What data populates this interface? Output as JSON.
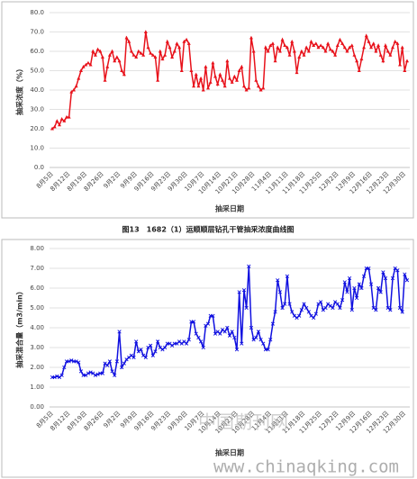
{
  "chart_data": [
    {
      "type": "line",
      "ylabel": "抽采浓度（%）",
      "xlabel": "抽采日期",
      "grid": true,
      "marker": "triangle",
      "ylim": [
        0,
        80
      ],
      "yticks": [
        {
          "value": 0,
          "label": "0.0"
        },
        {
          "value": 10,
          "label": "10.0"
        },
        {
          "value": 20,
          "label": "20.0"
        },
        {
          "value": 30,
          "label": "30.0"
        },
        {
          "value": 40,
          "label": "40.0"
        },
        {
          "value": 50,
          "label": "50.0"
        },
        {
          "value": 60,
          "label": "60.0"
        },
        {
          "value": 70,
          "label": "70.0"
        },
        {
          "value": 80,
          "label": "80.0"
        }
      ],
      "categories": [
        "8月5日",
        null,
        null,
        null,
        null,
        null,
        null,
        "8月12日",
        null,
        null,
        null,
        null,
        null,
        null,
        "8月19日",
        null,
        null,
        null,
        null,
        null,
        null,
        "8月26日",
        null,
        null,
        null,
        null,
        null,
        null,
        "9月2日",
        null,
        null,
        null,
        null,
        null,
        null,
        "9月9日",
        null,
        null,
        null,
        null,
        null,
        null,
        "9月16日",
        null,
        null,
        null,
        null,
        null,
        null,
        "9月23日",
        null,
        null,
        null,
        null,
        null,
        null,
        "9月30日",
        null,
        null,
        null,
        null,
        null,
        null,
        "10月7日",
        null,
        null,
        null,
        null,
        null,
        null,
        "10月14日",
        null,
        null,
        null,
        null,
        null,
        null,
        "10月21日",
        null,
        null,
        null,
        null,
        null,
        null,
        "10月28日",
        null,
        null,
        null,
        null,
        null,
        null,
        "11月4日",
        null,
        null,
        null,
        null,
        null,
        null,
        "11月11日",
        null,
        null,
        null,
        null,
        null,
        null,
        "11月18日",
        null,
        null,
        null,
        null,
        null,
        null,
        "11月25日",
        null,
        null,
        null,
        null,
        null,
        null,
        "12月2日",
        null,
        null,
        null,
        null,
        null,
        null,
        "12月9日",
        null,
        null,
        null,
        null,
        null,
        null,
        "12月16日",
        null,
        null,
        null,
        null,
        null,
        null,
        "12月23日",
        null,
        null,
        null,
        null,
        null,
        null,
        "12月30日",
        null
      ],
      "series": [
        {
          "color": "#e8121b",
          "values": [
            20,
            21,
            24,
            22,
            25,
            24,
            26,
            26,
            39,
            40,
            42,
            46,
            50,
            52,
            53,
            54,
            53,
            60,
            58,
            61,
            60,
            57,
            45,
            52,
            58,
            60,
            55,
            57,
            55,
            50,
            48,
            67,
            65,
            60,
            58,
            57,
            60,
            59,
            58,
            70,
            62,
            59,
            58,
            57,
            45,
            60,
            56,
            58,
            65,
            62,
            57,
            60,
            64,
            62,
            50,
            65,
            66,
            64,
            50,
            42,
            48,
            42,
            46,
            40,
            52,
            41,
            44,
            54,
            47,
            43,
            48,
            45,
            42,
            55,
            46,
            44,
            47,
            45,
            50,
            52,
            42,
            40,
            41,
            67,
            60,
            45,
            42,
            40,
            41,
            62,
            60,
            63,
            64,
            55,
            62,
            60,
            66,
            63,
            62,
            58,
            65,
            60,
            49,
            57,
            60,
            58,
            62,
            60,
            65,
            63,
            64,
            62,
            63,
            62,
            60,
            64,
            61,
            60,
            58,
            63,
            66,
            64,
            62,
            60,
            62,
            63,
            58,
            55,
            50,
            56,
            62,
            68,
            65,
            62,
            64,
            60,
            63,
            58,
            55,
            63,
            60,
            58,
            62,
            65,
            64,
            53,
            62,
            50,
            55
          ]
        }
      ]
    },
    {
      "type": "line",
      "ylabel": "抽采混合量（m3/min）",
      "xlabel": "抽采日期",
      "grid": true,
      "marker": "cross",
      "ylim": [
        0,
        8
      ],
      "yticks": [
        {
          "value": 0,
          "label": "0.00"
        },
        {
          "value": 1,
          "label": "1.00"
        },
        {
          "value": 2,
          "label": "2.00"
        },
        {
          "value": 3,
          "label": "3.00"
        },
        {
          "value": 4,
          "label": "4.00"
        },
        {
          "value": 5,
          "label": "5.00"
        },
        {
          "value": 6,
          "label": "6.00"
        },
        {
          "value": 7,
          "label": "7.00"
        },
        {
          "value": 8,
          "label": "8.00"
        }
      ],
      "categories": [
        "8月5日",
        null,
        null,
        null,
        null,
        null,
        null,
        "8月12日",
        null,
        null,
        null,
        null,
        null,
        null,
        "8月19日",
        null,
        null,
        null,
        null,
        null,
        null,
        "8月26日",
        null,
        null,
        null,
        null,
        null,
        null,
        "9月2日",
        null,
        null,
        null,
        null,
        null,
        null,
        "9月9日",
        null,
        null,
        null,
        null,
        null,
        null,
        "9月16日",
        null,
        null,
        null,
        null,
        null,
        null,
        "9月23日",
        null,
        null,
        null,
        null,
        null,
        null,
        "9月30日",
        null,
        null,
        null,
        null,
        null,
        null,
        "10月7日",
        null,
        null,
        null,
        null,
        null,
        null,
        "10月14日",
        null,
        null,
        null,
        null,
        null,
        null,
        "10月21日",
        null,
        null,
        null,
        null,
        null,
        null,
        "10月28日",
        null,
        null,
        null,
        null,
        null,
        null,
        "11月4日",
        null,
        null,
        null,
        null,
        null,
        null,
        "11月11日",
        null,
        null,
        null,
        null,
        null,
        null,
        "11月18日",
        null,
        null,
        null,
        null,
        null,
        null,
        "11月25日",
        null,
        null,
        null,
        null,
        null,
        null,
        "12月2日",
        null,
        null,
        null,
        null,
        null,
        null,
        "12月9日",
        null,
        null,
        null,
        null,
        null,
        null,
        "12月16日",
        null,
        null,
        null,
        null,
        null,
        null,
        "12月23日",
        null,
        null,
        null,
        null,
        null,
        null,
        "12月30日",
        null
      ],
      "series": [
        {
          "color": "#1010e0",
          "values": [
            1.5,
            1.5,
            1.55,
            1.5,
            1.6,
            2.0,
            2.3,
            2.3,
            2.35,
            2.3,
            2.3,
            2.25,
            1.8,
            1.6,
            1.6,
            1.7,
            1.75,
            1.7,
            1.6,
            1.65,
            1.7,
            1.7,
            2.2,
            2.1,
            2.3,
            1.8,
            1.6,
            2.3,
            3.8,
            2.0,
            2.2,
            2.4,
            2.5,
            2.6,
            2.5,
            3.3,
            2.8,
            2.9,
            2.6,
            2.5,
            3.0,
            3.1,
            2.6,
            2.8,
            3.3,
            3.0,
            2.9,
            3.0,
            3.2,
            3.2,
            3.1,
            3.2,
            3.2,
            3.3,
            3.2,
            3.3,
            3.2,
            3.4,
            4.3,
            4.3,
            3.7,
            3.5,
            3.3,
            3.0,
            4.1,
            4.2,
            4.6,
            4.6,
            3.7,
            3.8,
            3.7,
            3.9,
            3.8,
            4.0,
            3.6,
            3.8,
            3.5,
            2.9,
            5.8,
            3.2,
            5.9,
            5.0,
            7.1,
            4.0,
            3.4,
            3.5,
            3.8,
            3.4,
            3.2,
            2.9,
            2.9,
            3.4,
            4.2,
            4.8,
            6.4,
            5.8,
            5.0,
            5.2,
            6.6,
            5.2,
            4.8,
            4.6,
            4.5,
            4.6,
            4.9,
            5.2,
            5.0,
            4.8,
            4.6,
            4.5,
            4.7,
            5.2,
            5.3,
            4.9,
            5.0,
            5.2,
            5.1,
            5.0,
            5.3,
            5.2,
            5.0,
            5.4,
            6.3,
            5.8,
            6.5,
            4.9,
            6.0,
            5.5,
            6.2,
            6.0,
            6.6,
            7.0,
            7.0,
            6.2,
            5.0,
            4.9,
            6.0,
            5.8,
            6.8,
            6.5,
            5.0,
            4.9,
            6.5,
            7.0,
            6.9,
            5.0,
            4.8,
            6.7,
            6.4
          ]
        }
      ]
    }
  ],
  "caption": "图13　1682（1）运顺顺层钻孔干管抽采浓度曲线图",
  "watermark": {
    "cn": "中国期刊网",
    "url": "www.chinaqking.com"
  }
}
